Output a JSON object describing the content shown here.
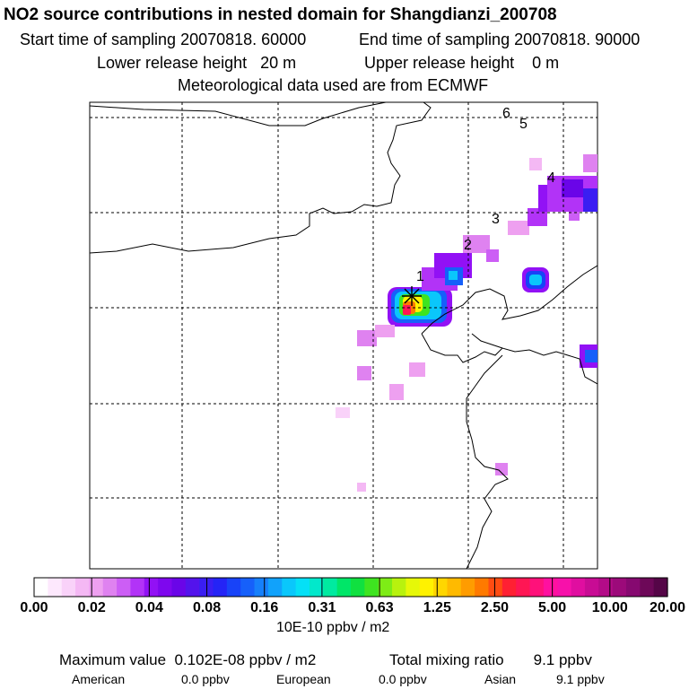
{
  "title": "NO2 source contributions in nested domain for Shangdianzi_200708",
  "sampling": {
    "start": "Start time of sampling 20070818. 60000",
    "end": "End time of sampling 20070818. 90000"
  },
  "release": {
    "lower": "Lower release height   20 m",
    "upper": "Upper release height    0 m"
  },
  "meteo": "Meteorological data used are from ECMWF",
  "trajectory_labels": [
    "1",
    "2",
    "3",
    "4",
    "5",
    "6"
  ],
  "colorbar": {
    "ticks": [
      "0.00",
      "0.02",
      "0.04",
      "0.08",
      "0.16",
      "0.31",
      "0.63",
      "1.25",
      "2.50",
      "5.00",
      "10.00",
      "20.00"
    ],
    "unit": "10E-10 ppbv / m2",
    "colors": [
      "#ffffff",
      "#fde8fd",
      "#f9d2f9",
      "#f4b8f4",
      "#eea0f0",
      "#df82f0",
      "#cc5ef5",
      "#b233f7",
      "#9211f5",
      "#7e07ee",
      "#6a05e8",
      "#5313ec",
      "#3a1ef2",
      "#2424f6",
      "#1843f8",
      "#1660fa",
      "#1680fb",
      "#11a2fb",
      "#0ac7fb",
      "#05e0f6",
      "#02e8cb",
      "#00eaa0",
      "#00e668",
      "#10e040",
      "#3ee420",
      "#7eec16",
      "#b8f20e",
      "#e6f808",
      "#fff200",
      "#ffd600",
      "#ffba00",
      "#ff9c00",
      "#ff7a00",
      "#ff4c12",
      "#ff2033",
      "#ff1654",
      "#ff117a",
      "#ff10a0",
      "#f711aa",
      "#e00ea0",
      "#c80c94",
      "#b30b88",
      "#9c0a7a",
      "#860970",
      "#6d0858",
      "#550547"
    ]
  },
  "maximum": "Maximum value  0.102E-08 ppbv / m2",
  "total": "Total mixing ratio       9.1 ppbv",
  "contributions": [
    {
      "label": "American",
      "value": "0.0 ppbv"
    },
    {
      "label": "European",
      "value": "0.0 ppbv"
    },
    {
      "label": "Asian",
      "value": "9.1 ppbv"
    }
  ],
  "source_marker": "receptor-star"
}
